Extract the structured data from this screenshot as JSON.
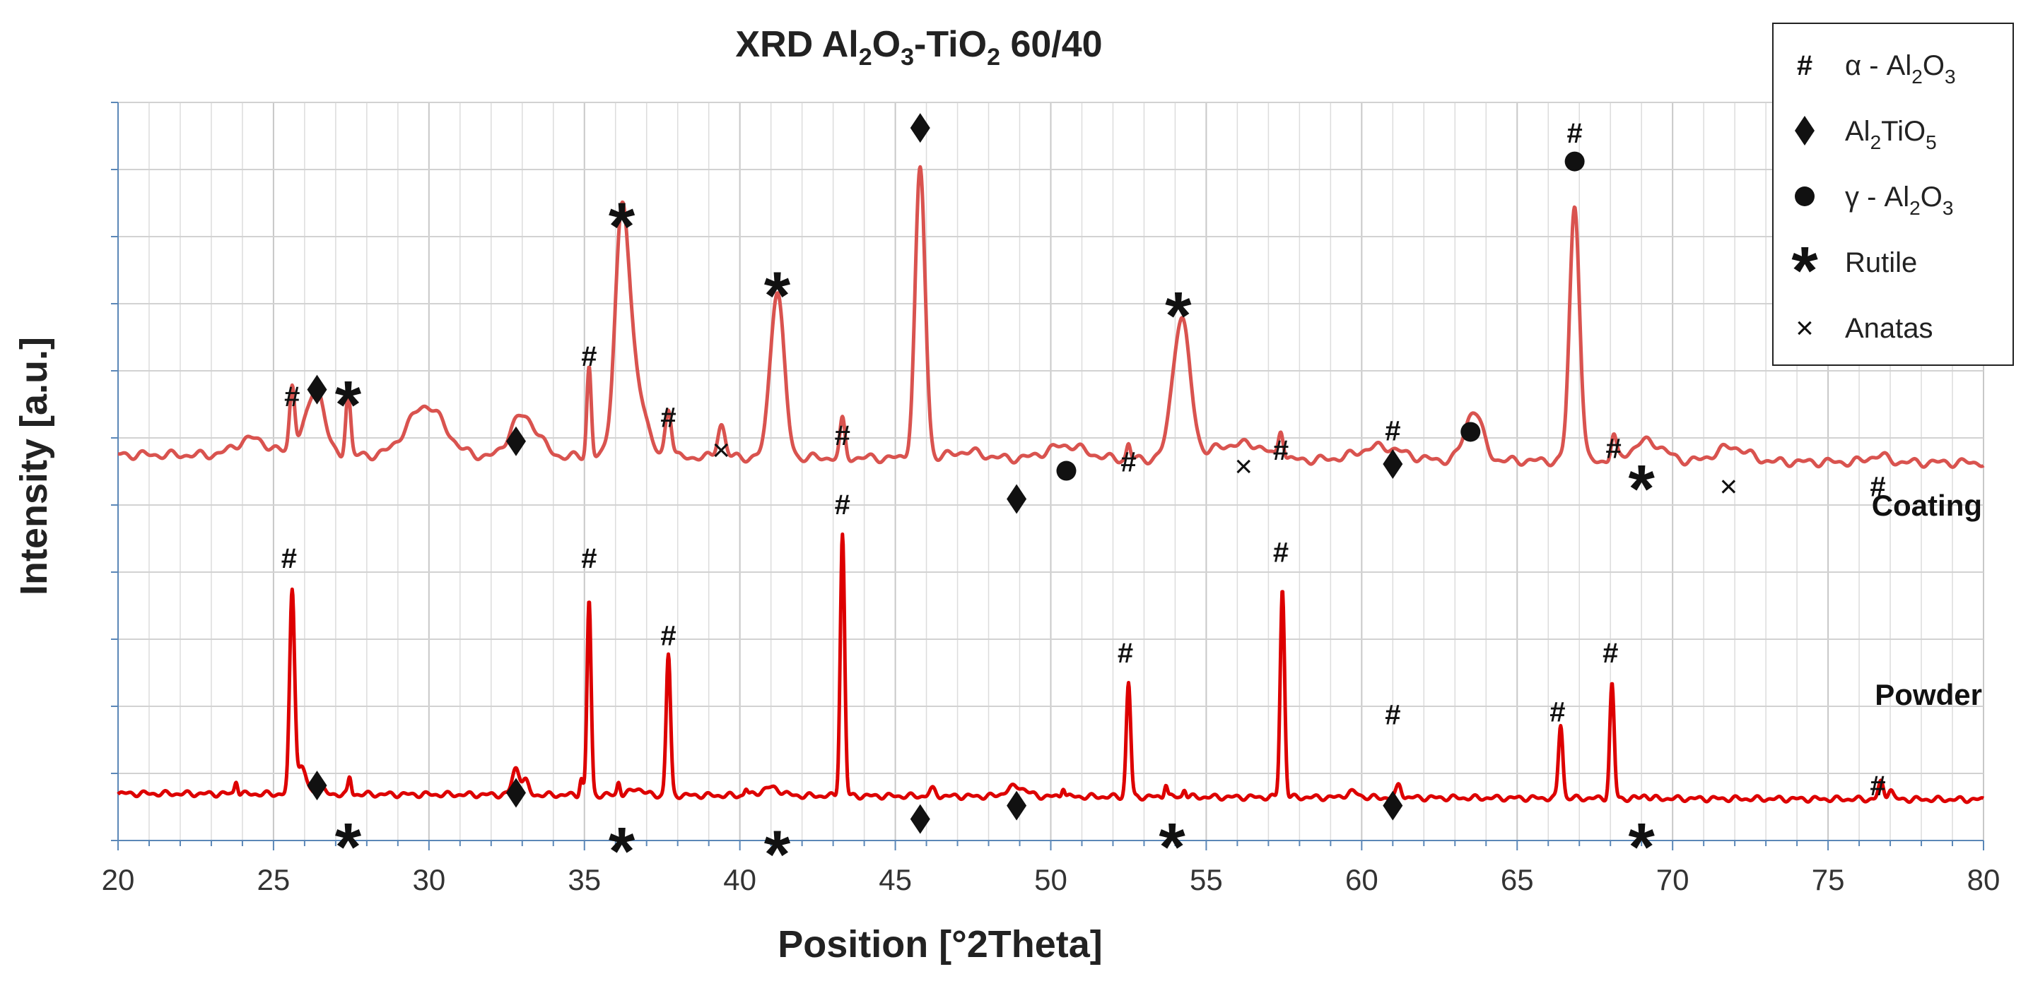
{
  "chart_data": {
    "type": "line",
    "title": "XRD Al2O3-TiO2 60/40",
    "title_parts": {
      "pre": "XRD Al",
      "s1": "2",
      "mid1": "O",
      "s2": "3",
      "mid2": "-TiO",
      "s3": "2",
      "post": " 60/40"
    },
    "xlabel": "Position [°2Theta]",
    "ylabel": "Intensity [a.u.]",
    "xlim": [
      20,
      80
    ],
    "ylim": [
      0,
      11
    ],
    "x_ticks": [
      "20",
      "25",
      "30",
      "35",
      "40",
      "45",
      "50",
      "55",
      "60",
      "65",
      "70",
      "75",
      "80"
    ],
    "grid": true,
    "colors": {
      "coating": "#d9534f",
      "powder": "#dd0000"
    },
    "series": [
      {
        "name": "Coating",
        "baseline": 5.75,
        "color": "#d9534f",
        "peaks": [
          [
            24.3,
            0.25,
            0.5
          ],
          [
            25.6,
            0.9,
            0.08
          ],
          [
            25.9,
            0.25,
            0.3
          ],
          [
            26.4,
            0.95,
            0.25
          ],
          [
            27.4,
            0.95,
            0.08
          ],
          [
            29.9,
            0.75,
            0.6
          ],
          [
            32.8,
            0.4,
            0.3
          ],
          [
            33.3,
            0.4,
            0.35
          ],
          [
            35.15,
            1.35,
            0.07
          ],
          [
            36.2,
            3.4,
            0.22
          ],
          [
            36.65,
            1.1,
            0.3
          ],
          [
            37.7,
            0.75,
            0.1
          ],
          [
            39.4,
            0.5,
            0.12
          ],
          [
            41.2,
            2.5,
            0.22
          ],
          [
            43.3,
            0.55,
            0.08
          ],
          [
            45.8,
            4.3,
            0.16
          ],
          [
            47.3,
            0.1,
            0.5
          ],
          [
            50.5,
            0.2,
            0.6
          ],
          [
            52.5,
            0.22,
            0.06
          ],
          [
            54.2,
            2.1,
            0.28
          ],
          [
            55.7,
            0.2,
            0.6
          ],
          [
            56.6,
            0.15,
            0.4
          ],
          [
            57.4,
            0.45,
            0.08
          ],
          [
            60.6,
            0.2,
            0.7
          ],
          [
            63.6,
            0.75,
            0.28
          ],
          [
            66.85,
            3.8,
            0.16
          ],
          [
            68.1,
            0.35,
            0.08
          ],
          [
            69.2,
            0.3,
            0.5
          ],
          [
            71.9,
            0.22,
            0.5
          ],
          [
            76.6,
            0.1,
            0.3
          ]
        ]
      },
      {
        "name": "Powder",
        "baseline": 0.7,
        "color": "#dd0000",
        "peaks": [
          [
            23.8,
            0.2,
            0.05
          ],
          [
            25.6,
            3.0,
            0.08
          ],
          [
            25.9,
            0.4,
            0.15
          ],
          [
            26.5,
            0.15,
            0.1
          ],
          [
            27.45,
            0.25,
            0.05
          ],
          [
            32.8,
            0.4,
            0.12
          ],
          [
            33.1,
            0.2,
            0.1
          ],
          [
            34.9,
            0.25,
            0.05
          ],
          [
            35.15,
            2.9,
            0.065
          ],
          [
            36.1,
            0.2,
            0.05
          ],
          [
            36.7,
            0.1,
            0.2
          ],
          [
            37.7,
            2.1,
            0.07
          ],
          [
            40.2,
            0.1,
            0.05
          ],
          [
            41.0,
            0.12,
            0.3
          ],
          [
            43.3,
            3.9,
            0.07
          ],
          [
            46.2,
            0.1,
            0.1
          ],
          [
            48.9,
            0.15,
            0.3
          ],
          [
            50.4,
            0.15,
            0.05
          ],
          [
            52.5,
            1.7,
            0.07
          ],
          [
            53.7,
            0.2,
            0.05
          ],
          [
            54.3,
            0.12,
            0.05
          ],
          [
            57.45,
            3.1,
            0.07
          ],
          [
            59.7,
            0.08,
            0.2
          ],
          [
            61.2,
            0.2,
            0.08
          ],
          [
            66.4,
            1.1,
            0.07
          ],
          [
            68.05,
            1.7,
            0.07
          ],
          [
            69.1,
            0.05,
            0.1
          ],
          [
            76.7,
            0.25,
            0.08
          ],
          [
            77.0,
            0.15,
            0.08
          ]
        ]
      }
    ],
    "annotations": [
      {
        "type": "hash",
        "x": 25.6,
        "y": 6.62
      },
      {
        "type": "diamond",
        "x": 26.4,
        "y": 6.72
      },
      {
        "type": "star",
        "x": 27.4,
        "y": 6.62
      },
      {
        "type": "diamond",
        "x": 32.8,
        "y": 5.95
      },
      {
        "type": "hash",
        "x": 35.15,
        "y": 7.22
      },
      {
        "type": "star",
        "x": 36.2,
        "y": 9.28
      },
      {
        "type": "hash",
        "x": 37.7,
        "y": 6.31
      },
      {
        "type": "cross",
        "x": 39.4,
        "y": 5.82
      },
      {
        "type": "star",
        "x": 41.2,
        "y": 8.25
      },
      {
        "type": "hash",
        "x": 43.3,
        "y": 6.04
      },
      {
        "type": "diamond",
        "x": 45.8,
        "y": 10.62
      },
      {
        "type": "diamond",
        "x": 48.9,
        "y": 5.09
      },
      {
        "type": "circle",
        "x": 50.5,
        "y": 5.51
      },
      {
        "type": "hash",
        "x": 52.5,
        "y": 5.65
      },
      {
        "type": "star",
        "x": 54.1,
        "y": 7.95
      },
      {
        "type": "cross",
        "x": 56.2,
        "y": 5.58
      },
      {
        "type": "hash",
        "x": 57.4,
        "y": 5.82
      },
      {
        "type": "diamond",
        "x": 61.0,
        "y": 5.61
      },
      {
        "type": "hash",
        "x": 61.0,
        "y": 6.11
      },
      {
        "type": "circle",
        "x": 63.5,
        "y": 6.09
      },
      {
        "type": "hash",
        "x": 66.85,
        "y": 10.55
      },
      {
        "type": "circle",
        "x": 66.85,
        "y": 10.12
      },
      {
        "type": "hash",
        "x": 68.1,
        "y": 5.85
      },
      {
        "type": "star",
        "x": 69.0,
        "y": 5.37
      },
      {
        "type": "cross",
        "x": 71.8,
        "y": 5.28
      },
      {
        "type": "hash",
        "x": 76.6,
        "y": 5.28
      },
      {
        "type": "hash",
        "x": 25.5,
        "y": 4.21
      },
      {
        "type": "diamond",
        "x": 26.4,
        "y": 0.82
      },
      {
        "type": "star",
        "x": 27.4,
        "y": 0.03
      },
      {
        "type": "diamond",
        "x": 32.8,
        "y": 0.71
      },
      {
        "type": "hash",
        "x": 35.15,
        "y": 4.21
      },
      {
        "type": "star",
        "x": 36.2,
        "y": -0.03
      },
      {
        "type": "hash",
        "x": 37.7,
        "y": 3.06
      },
      {
        "type": "star",
        "x": 41.2,
        "y": -0.08
      },
      {
        "type": "hash",
        "x": 43.3,
        "y": 5.01
      },
      {
        "type": "diamond",
        "x": 45.8,
        "y": 0.32
      },
      {
        "type": "diamond",
        "x": 48.9,
        "y": 0.52
      },
      {
        "type": "hash",
        "x": 52.4,
        "y": 2.8
      },
      {
        "type": "star",
        "x": 53.9,
        "y": 0.03
      },
      {
        "type": "hash",
        "x": 57.4,
        "y": 4.3
      },
      {
        "type": "hash",
        "x": 61.0,
        "y": 1.88
      },
      {
        "type": "diamond",
        "x": 61.0,
        "y": 0.52
      },
      {
        "type": "hash",
        "x": 66.3,
        "y": 1.92
      },
      {
        "type": "hash",
        "x": 68.0,
        "y": 2.8
      },
      {
        "type": "star",
        "x": 69.0,
        "y": 0.03
      },
      {
        "type": "hash",
        "x": 76.6,
        "y": 0.82
      }
    ],
    "legend": {
      "position": "top-right",
      "entries": [
        {
          "marker": "hash",
          "label": "α - Al2O3",
          "parts": {
            "pre": "α - Al",
            "s1": "2",
            "mid": "O",
            "s2": "3",
            "post": ""
          }
        },
        {
          "marker": "diamond",
          "label": "Al2TiO5",
          "parts": {
            "pre": "Al",
            "s1": "2",
            "mid": "TiO",
            "s2": "5",
            "post": ""
          }
        },
        {
          "marker": "circle",
          "label": "γ - Al2O3",
          "parts": {
            "pre": "γ - Al",
            "s1": "2",
            "mid": "O",
            "s2": "3",
            "post": ""
          }
        },
        {
          "marker": "star",
          "label": "Rutile",
          "parts": {
            "pre": "Rutile",
            "s1": "",
            "mid": "",
            "s2": "",
            "post": ""
          }
        },
        {
          "marker": "cross",
          "label": "Anatas",
          "parts": {
            "pre": "Anatas",
            "s1": "",
            "mid": "",
            "s2": "",
            "post": ""
          }
        }
      ]
    }
  }
}
